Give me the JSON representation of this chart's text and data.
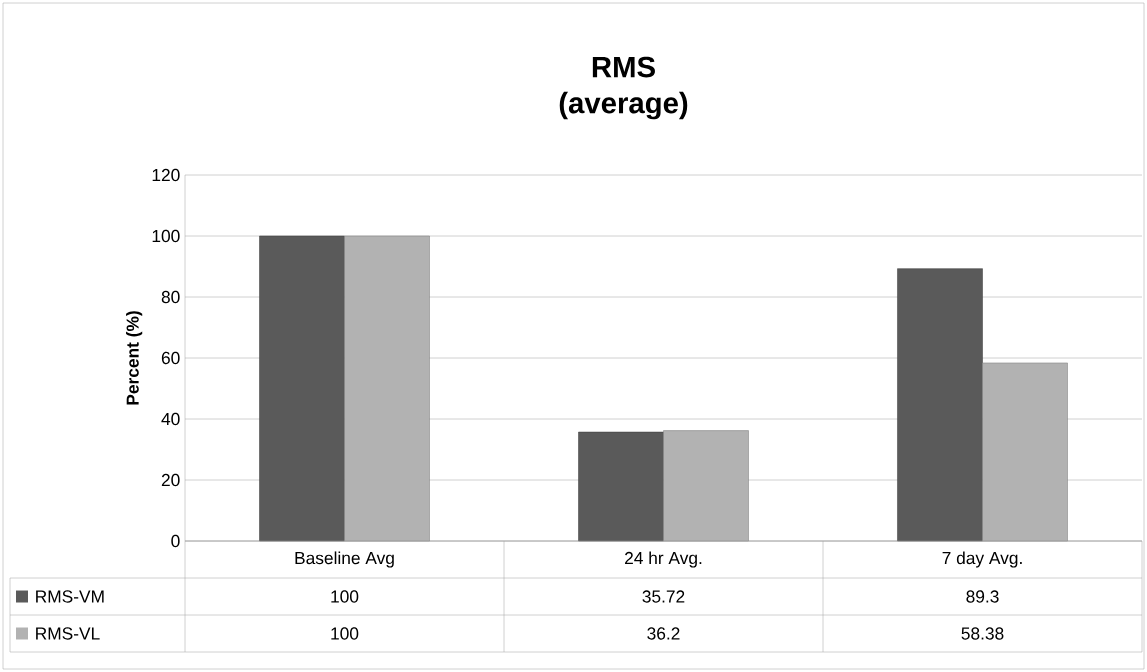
{
  "chart_data": {
    "type": "bar",
    "title": "RMS\n(average)",
    "ylabel": "Percent (%)",
    "categories": [
      "Baseline Avg",
      "24 hr Avg.",
      "7 day Avg."
    ],
    "series": [
      {
        "name": "RMS-VM",
        "color": "#5a5a5a",
        "values": [
          100,
          35.72,
          89.3
        ]
      },
      {
        "name": "RMS-VL",
        "color": "#b2b2b2",
        "values": [
          100,
          36.2,
          58.38
        ]
      }
    ],
    "ylim": [
      0,
      120
    ],
    "yticks": [
      0,
      20,
      40,
      60,
      80,
      100,
      120
    ],
    "grid": "y",
    "legend": "bottom",
    "data_labels": true
  }
}
